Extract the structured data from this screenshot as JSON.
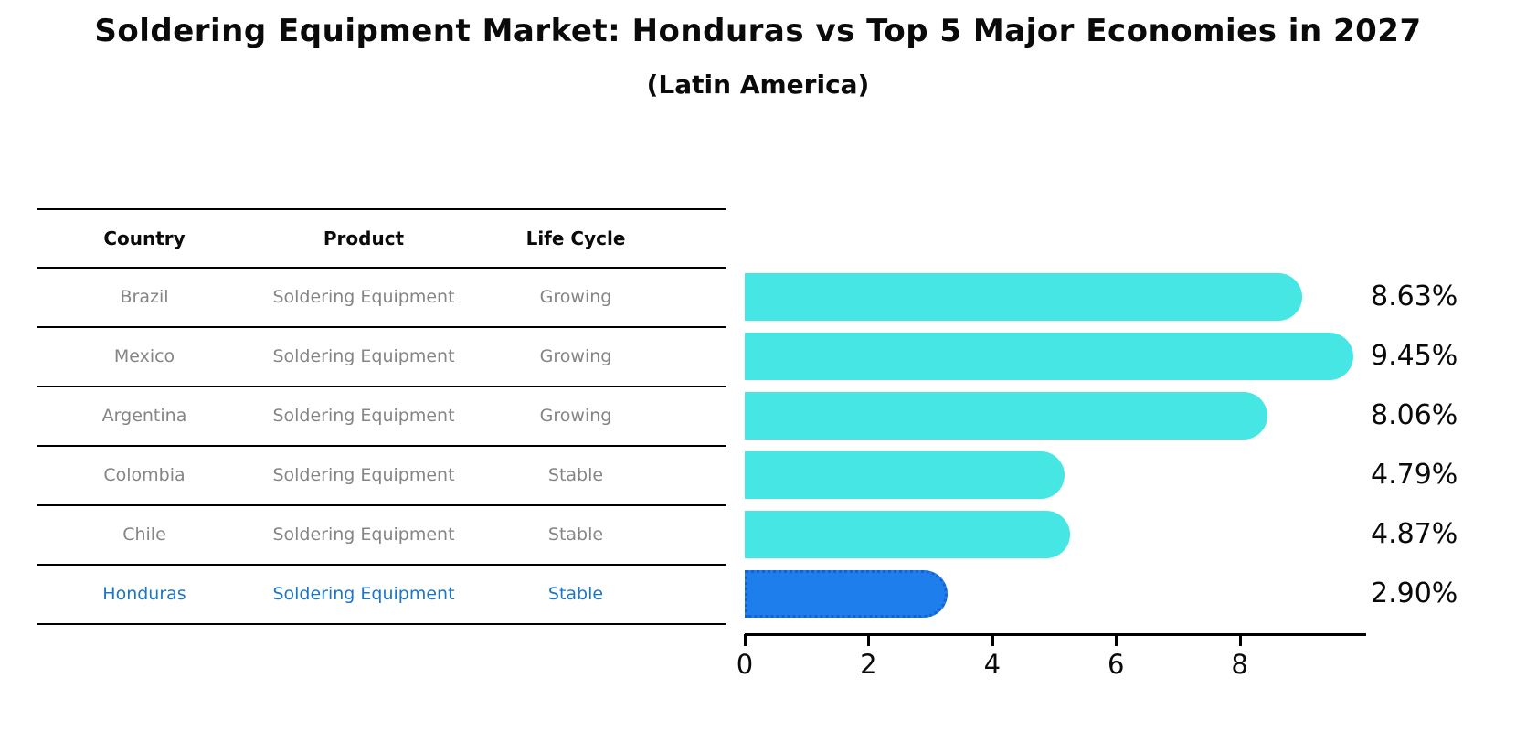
{
  "header": {
    "title": "Soldering Equipment Market: Honduras vs Top 5 Major Economies in 2027",
    "subtitle": "(Latin America)"
  },
  "table": {
    "headers": [
      "Country",
      "Product",
      "Life Cycle"
    ],
    "rows": [
      {
        "country": "Brazil",
        "product": "Soldering Equipment",
        "life_cycle": "Growing",
        "highlighted": false
      },
      {
        "country": "Mexico",
        "product": "Soldering Equipment",
        "life_cycle": "Growing",
        "highlighted": false
      },
      {
        "country": "Argentina",
        "product": "Soldering Equipment",
        "life_cycle": "Growing",
        "highlighted": false
      },
      {
        "country": "Colombia",
        "product": "Soldering Equipment",
        "life_cycle": "Stable",
        "highlighted": false
      },
      {
        "country": "Chile",
        "product": "Soldering Equipment",
        "life_cycle": "Stable",
        "highlighted": false
      },
      {
        "country": "Honduras",
        "product": "Soldering Equipment",
        "life_cycle": "Stable",
        "highlighted": true
      }
    ]
  },
  "chart_data": {
    "type": "bar",
    "orientation": "horizontal",
    "title": "Soldering Equipment Market: Honduras vs Top 5 Major Economies in 2027",
    "subtitle": "(Latin America)",
    "categories": [
      "Brazil",
      "Mexico",
      "Argentina",
      "Colombia",
      "Chile",
      "Honduras"
    ],
    "values": [
      8.63,
      9.45,
      8.06,
      4.79,
      4.87,
      2.9
    ],
    "value_labels": [
      "8.63%",
      "9.45%",
      "8.06%",
      "4.79%",
      "4.87%",
      "2.90%"
    ],
    "xticks": [
      0,
      2,
      4,
      6,
      8
    ],
    "xlim": [
      0,
      9.9
    ],
    "xlabel": "",
    "ylabel": "",
    "grid": false,
    "legend": "none",
    "bar_color": "#45e6e4",
    "highlight_bar_color": "#1e7fec",
    "highlight_text_color": "#1c76c8",
    "highlight_index": 5,
    "highlight_category": "Honduras"
  }
}
